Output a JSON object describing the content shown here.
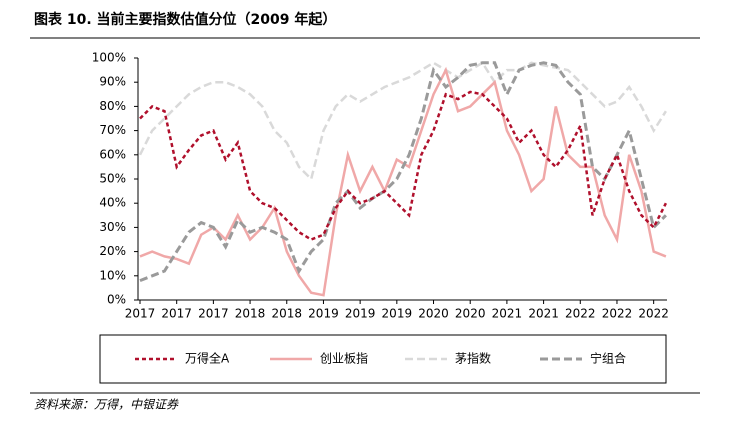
{
  "chart_data": {
    "type": "line",
    "title": "图表 10. 当前主要指数估值分位（2009 年起）",
    "source": "资料来源：万得，中银证券",
    "categories": [
      "2017",
      null,
      null,
      "2017",
      null,
      null,
      "2017",
      null,
      null,
      "2018",
      null,
      null,
      "2018",
      null,
      null,
      "2019",
      null,
      null,
      "2019",
      null,
      null,
      "2019",
      null,
      null,
      "2020",
      null,
      null,
      "2020",
      null,
      null,
      "2021",
      null,
      null,
      "2021",
      null,
      null,
      "2022",
      null,
      null,
      "2022",
      null,
      null,
      "2022",
      null
    ],
    "ylim": [
      0,
      100
    ],
    "yticks": [
      {
        "value": 0,
        "label": "0%"
      },
      {
        "value": 10,
        "label": "10%"
      },
      {
        "value": 20,
        "label": "20%"
      },
      {
        "value": 30,
        "label": "30%"
      },
      {
        "value": 40,
        "label": "40%"
      },
      {
        "value": 50,
        "label": "50%"
      },
      {
        "value": 60,
        "label": "60%"
      },
      {
        "value": 70,
        "label": "70%"
      },
      {
        "value": 80,
        "label": "80%"
      },
      {
        "value": 90,
        "label": "90%"
      },
      {
        "value": 100,
        "label": "100%"
      }
    ],
    "series": [
      {
        "name": "万得全A",
        "color": "#b0102c",
        "dash": "4,3",
        "width": 2.5,
        "values": [
          75,
          80,
          78,
          55,
          62,
          68,
          70,
          58,
          65,
          45,
          40,
          38,
          33,
          28,
          25,
          27,
          38,
          45,
          40,
          42,
          45,
          40,
          35,
          60,
          70,
          85,
          83,
          86,
          85,
          80,
          75,
          65,
          70,
          60,
          55,
          62,
          72,
          35,
          50,
          60,
          45,
          35,
          30,
          40
        ]
      },
      {
        "name": "创业板指",
        "color": "#f0a8a8",
        "dash": "none",
        "width": 2.5,
        "values": [
          18,
          20,
          18,
          17,
          15,
          27,
          30,
          25,
          35,
          25,
          30,
          38,
          20,
          10,
          3,
          2,
          35,
          60,
          45,
          55,
          45,
          58,
          55,
          70,
          85,
          95,
          78,
          80,
          85,
          90,
          70,
          60,
          45,
          50,
          80,
          60,
          55,
          55,
          35,
          25,
          60,
          45,
          20,
          18
        ]
      },
      {
        "name": "茅指数",
        "color": "#d9d9d9",
        "dash": "8,4",
        "width": 2.5,
        "values": [
          60,
          70,
          75,
          80,
          85,
          88,
          90,
          90,
          88,
          85,
          80,
          70,
          65,
          55,
          50,
          70,
          80,
          85,
          82,
          85,
          88,
          90,
          92,
          95,
          98,
          95,
          92,
          95,
          98,
          90,
          95,
          95,
          98,
          97,
          96,
          95,
          90,
          85,
          80,
          82,
          88,
          80,
          70,
          78
        ]
      },
      {
        "name": "宁组合",
        "color": "#9a9a9a",
        "dash": "8,4",
        "width": 3,
        "values": [
          8,
          10,
          12,
          20,
          28,
          32,
          30,
          22,
          33,
          28,
          30,
          28,
          25,
          12,
          20,
          25,
          40,
          45,
          38,
          42,
          45,
          50,
          60,
          75,
          95,
          88,
          92,
          97,
          98,
          98,
          85,
          95,
          97,
          98,
          97,
          90,
          85,
          55,
          50,
          60,
          70,
          50,
          30,
          35
        ]
      }
    ]
  }
}
